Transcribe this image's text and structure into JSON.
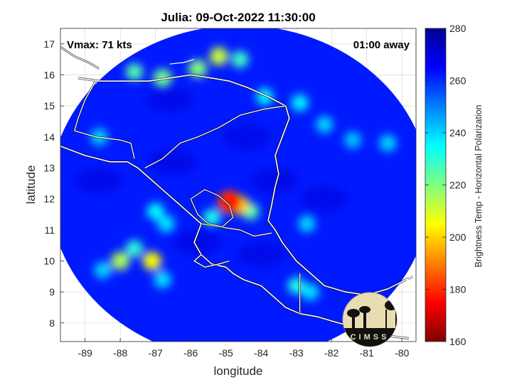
{
  "chart_data": {
    "type": "heatmap",
    "title": "Julia: 09-Oct-2022 11:30:00",
    "annotations": {
      "left": "Vmax: 71 kts",
      "right": "01:00 away"
    },
    "xlabel": "longitude",
    "ylabel": "latitude",
    "xlim": [
      -89.7,
      -79.6
    ],
    "ylim": [
      7.4,
      17.5
    ],
    "x_ticks": [
      -89,
      -88,
      -87,
      -86,
      -85,
      -84,
      -83,
      -82,
      -81,
      -80
    ],
    "y_ticks": [
      8,
      9,
      10,
      11,
      12,
      13,
      14,
      15,
      16,
      17
    ],
    "grid": true,
    "colorbar": {
      "label": "Brightness Temp - Horizontal Polarization",
      "min": 160,
      "max": 280,
      "ticks": [
        160,
        180,
        200,
        220,
        240,
        260,
        280
      ]
    },
    "swath": {
      "center": [
        -84.6,
        12.2
      ],
      "radius_deg": 5.4,
      "background_value": 262
    },
    "storm_center": [
      -84.9,
      11.9
    ],
    "features": [
      {
        "lon": -84.9,
        "lat": 11.9,
        "value": 182
      },
      {
        "lon": -84.6,
        "lat": 11.8,
        "value": 200
      },
      {
        "lon": -84.3,
        "lat": 11.6,
        "value": 225
      },
      {
        "lon": -85.4,
        "lat": 11.4,
        "value": 232
      },
      {
        "lon": -87.0,
        "lat": 11.6,
        "value": 235
      },
      {
        "lon": -86.7,
        "lat": 11.2,
        "value": 238
      },
      {
        "lon": -87.1,
        "lat": 10.0,
        "value": 205
      },
      {
        "lon": -88.0,
        "lat": 10.0,
        "value": 215
      },
      {
        "lon": -87.6,
        "lat": 10.4,
        "value": 230
      },
      {
        "lon": -86.8,
        "lat": 9.4,
        "value": 238
      },
      {
        "lon": -88.5,
        "lat": 9.7,
        "value": 240
      },
      {
        "lon": -86.8,
        "lat": 15.9,
        "value": 222
      },
      {
        "lon": -85.8,
        "lat": 16.2,
        "value": 220
      },
      {
        "lon": -87.6,
        "lat": 16.1,
        "value": 225
      },
      {
        "lon": -85.2,
        "lat": 16.6,
        "value": 212
      },
      {
        "lon": -84.6,
        "lat": 16.5,
        "value": 228
      },
      {
        "lon": -83.9,
        "lat": 15.3,
        "value": 235
      },
      {
        "lon": -82.9,
        "lat": 15.1,
        "value": 236
      },
      {
        "lon": -82.2,
        "lat": 14.4,
        "value": 240
      },
      {
        "lon": -81.4,
        "lat": 13.9,
        "value": 242
      },
      {
        "lon": -80.4,
        "lat": 13.8,
        "value": 240
      },
      {
        "lon": -82.7,
        "lat": 11.2,
        "value": 240
      },
      {
        "lon": -83.0,
        "lat": 9.2,
        "value": 232
      },
      {
        "lon": -82.6,
        "lat": 9.0,
        "value": 238
      },
      {
        "lon": -88.6,
        "lat": 14.0,
        "value": 240
      }
    ],
    "logo_text": "CIMSS"
  }
}
